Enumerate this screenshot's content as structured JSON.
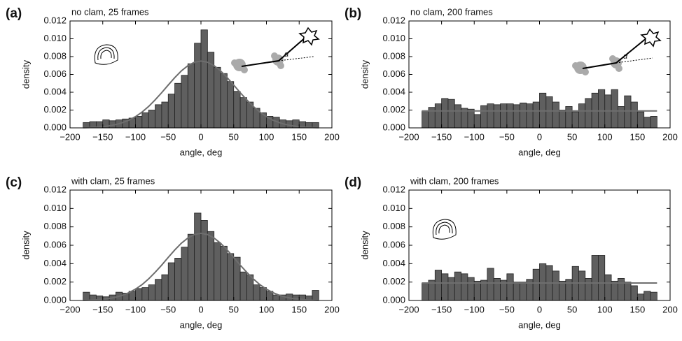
{
  "chart_data": [
    {
      "type": "histogram",
      "panel_label": "(a)",
      "title": "no clam, 25 frames",
      "xlabel": "angle, deg",
      "ylabel": "density",
      "bins": [
        -180,
        -170,
        -160,
        -150,
        -140,
        -130,
        -120,
        -110,
        -100,
        -90,
        -80,
        -70,
        -60,
        -50,
        -40,
        -30,
        -20,
        -10,
        0,
        10,
        20,
        30,
        40,
        50,
        60,
        70,
        80,
        90,
        100,
        110,
        120,
        130,
        140,
        150,
        160,
        170,
        180
      ],
      "values": [
        0.0006,
        0.0007,
        0.0007,
        0.0009,
        0.0008,
        0.0009,
        0.001,
        0.0011,
        0.0013,
        0.0017,
        0.002,
        0.0026,
        0.0029,
        0.0038,
        0.005,
        0.0059,
        0.0072,
        0.0095,
        0.011,
        0.0085,
        0.0068,
        0.0061,
        0.0052,
        0.0041,
        0.0034,
        0.0029,
        0.0022,
        0.0017,
        0.0013,
        0.0012,
        0.0009,
        0.0008,
        0.0009,
        0.0007,
        0.0006,
        0.0006
      ],
      "fit": {
        "x": [
          -180,
          -170,
          -160,
          -150,
          -140,
          -130,
          -120,
          -110,
          -100,
          -90,
          -80,
          -70,
          -60,
          -50,
          -40,
          -30,
          -20,
          -10,
          0,
          10,
          20,
          30,
          40,
          50,
          60,
          70,
          80,
          90,
          100,
          110,
          120,
          130,
          140,
          150,
          160,
          170,
          180
        ],
        "y": [
          2e-05,
          4e-05,
          8e-05,
          0.00014,
          0.00023,
          0.00037,
          0.00058,
          0.00087,
          0.00126,
          0.00177,
          0.0024,
          0.00314,
          0.00395,
          0.00481,
          0.00564,
          0.00639,
          0.00698,
          0.00737,
          0.0075,
          0.00737,
          0.00698,
          0.00639,
          0.00564,
          0.00481,
          0.00395,
          0.00314,
          0.0024,
          0.00177,
          0.00126,
          0.00087,
          0.00058,
          0.00037,
          0.00023,
          0.00014,
          8e-05,
          4e-05,
          2e-05
        ]
      },
      "color": "#5f5f5f",
      "fit_color": "#6e6e6e",
      "xlim": [
        -200,
        200
      ],
      "ylim": [
        0,
        0.012
      ],
      "xticks": [
        {
          "value": -200,
          "label": "−200"
        },
        {
          "value": -150,
          "label": "−150"
        },
        {
          "value": -100,
          "label": "−100"
        },
        {
          "value": -50,
          "label": "−50"
        },
        0,
        50,
        100,
        150,
        200
      ],
      "yticks": [
        {
          "value": 0,
          "label": "0.000"
        },
        0.002,
        0.004,
        0.006,
        0.008,
        {
          "value": 0.01,
          "label": "0.010"
        },
        0.012
      ]
    },
    {
      "type": "histogram",
      "panel_label": "(b)",
      "title": "no clam, 200 frames",
      "xlabel": "angle, deg",
      "ylabel": "density",
      "bins": [
        -180,
        -170,
        -160,
        -150,
        -140,
        -130,
        -120,
        -110,
        -100,
        -90,
        -80,
        -70,
        -60,
        -50,
        -40,
        -30,
        -20,
        -10,
        0,
        10,
        20,
        30,
        40,
        50,
        60,
        70,
        80,
        90,
        100,
        110,
        120,
        130,
        140,
        150,
        160,
        170,
        180
      ],
      "values": [
        0.0019,
        0.0023,
        0.0027,
        0.0033,
        0.0032,
        0.0026,
        0.0022,
        0.0021,
        0.0015,
        0.0025,
        0.0027,
        0.0026,
        0.0027,
        0.0027,
        0.0026,
        0.0028,
        0.0027,
        0.0029,
        0.0039,
        0.0035,
        0.0029,
        0.002,
        0.0024,
        0.0018,
        0.0027,
        0.0033,
        0.0039,
        0.0043,
        0.0037,
        0.0043,
        0.0024,
        0.0036,
        0.0029,
        0.0018,
        0.0012,
        0.0013
      ],
      "fit": {
        "x": [
          -180,
          180
        ],
        "y": [
          0.0019,
          0.0019
        ]
      },
      "color": "#5f5f5f",
      "fit_color": "#6e6e6e",
      "xlim": [
        -200,
        200
      ],
      "ylim": [
        0,
        0.012
      ],
      "xticks": [
        {
          "value": -200,
          "label": "−200"
        },
        {
          "value": -150,
          "label": "−150"
        },
        {
          "value": -100,
          "label": "−100"
        },
        {
          "value": -50,
          "label": "−50"
        },
        0,
        50,
        100,
        150,
        200
      ],
      "yticks": [
        {
          "value": 0,
          "label": "0.000"
        },
        0.002,
        0.004,
        0.006,
        0.008,
        {
          "value": 0.01,
          "label": "0.010"
        },
        0.012
      ]
    },
    {
      "type": "histogram",
      "panel_label": "(c)",
      "title": "with clam, 25 frames",
      "xlabel": "angle, deg",
      "ylabel": "density",
      "bins": [
        -180,
        -170,
        -160,
        -150,
        -140,
        -130,
        -120,
        -110,
        -100,
        -90,
        -80,
        -70,
        -60,
        -50,
        -40,
        -30,
        -20,
        -10,
        0,
        10,
        20,
        30,
        40,
        50,
        60,
        70,
        80,
        90,
        100,
        110,
        120,
        130,
        140,
        150,
        160,
        170,
        180
      ],
      "values": [
        0.0009,
        0.0006,
        0.0005,
        0.0004,
        0.0006,
        0.0009,
        0.0008,
        0.001,
        0.0013,
        0.0014,
        0.0017,
        0.0023,
        0.0028,
        0.0041,
        0.0046,
        0.0058,
        0.0072,
        0.0095,
        0.0087,
        0.0075,
        0.0063,
        0.0059,
        0.0051,
        0.0047,
        0.0031,
        0.0028,
        0.0017,
        0.0014,
        0.001,
        0.0006,
        0.0006,
        0.0007,
        0.0006,
        0.0006,
        0.0005,
        0.0011
      ],
      "fit": {
        "x": [
          -180,
          -170,
          -160,
          -150,
          -140,
          -130,
          -120,
          -110,
          -100,
          -90,
          -80,
          -70,
          -60,
          -50,
          -40,
          -30,
          -20,
          -10,
          0,
          10,
          20,
          30,
          40,
          50,
          60,
          70,
          80,
          90,
          100,
          110,
          120,
          130,
          140,
          150,
          160,
          170,
          180
        ],
        "y": [
          2e-05,
          4e-05,
          8e-05,
          0.00014,
          0.00022,
          0.00036,
          0.00056,
          0.00085,
          0.00123,
          0.00172,
          0.00234,
          0.00306,
          0.00384,
          0.00468,
          0.00549,
          0.00622,
          0.00679,
          0.00717,
          0.0073,
          0.00717,
          0.00679,
          0.00622,
          0.00549,
          0.00468,
          0.00384,
          0.00306,
          0.00234,
          0.00172,
          0.00123,
          0.00085,
          0.00056,
          0.00036,
          0.00022,
          0.00014,
          8e-05,
          4e-05,
          2e-05
        ]
      },
      "color": "#5f5f5f",
      "fit_color": "#6e6e6e",
      "xlim": [
        -200,
        200
      ],
      "ylim": [
        0,
        0.012
      ],
      "xticks": [
        {
          "value": -200,
          "label": "−200"
        },
        {
          "value": -150,
          "label": "−150"
        },
        {
          "value": -100,
          "label": "−100"
        },
        {
          "value": -50,
          "label": "−50"
        },
        0,
        50,
        100,
        150,
        200
      ],
      "yticks": [
        {
          "value": 0,
          "label": "0.000"
        },
        0.002,
        0.004,
        0.006,
        0.008,
        {
          "value": 0.01,
          "label": "0.010"
        },
        0.012
      ]
    },
    {
      "type": "histogram",
      "panel_label": "(d)",
      "title": "with clam, 200 frames",
      "xlabel": "angle, deg",
      "ylabel": "density",
      "bins": [
        -180,
        -170,
        -160,
        -150,
        -140,
        -130,
        -120,
        -110,
        -100,
        -90,
        -80,
        -70,
        -60,
        -50,
        -40,
        -30,
        -20,
        -10,
        0,
        10,
        20,
        30,
        40,
        50,
        60,
        70,
        80,
        90,
        100,
        110,
        120,
        130,
        140,
        150,
        160,
        170,
        180
      ],
      "values": [
        0.0019,
        0.0022,
        0.0033,
        0.0029,
        0.0025,
        0.0031,
        0.0029,
        0.0025,
        0.0021,
        0.0022,
        0.0035,
        0.0024,
        0.0022,
        0.0029,
        0.002,
        0.002,
        0.0023,
        0.0034,
        0.004,
        0.0038,
        0.0032,
        0.0021,
        0.0023,
        0.0037,
        0.0032,
        0.0024,
        0.0049,
        0.0049,
        0.0028,
        0.0021,
        0.0024,
        0.002,
        0.0016,
        0.0007,
        0.001,
        0.0009
      ],
      "fit": {
        "x": [
          -180,
          180
        ],
        "y": [
          0.0019,
          0.0019
        ]
      },
      "color": "#5f5f5f",
      "fit_color": "#6e6e6e",
      "xlim": [
        -200,
        200
      ],
      "ylim": [
        0,
        0.012
      ],
      "xticks": [
        {
          "value": -200,
          "label": "−200"
        },
        {
          "value": -150,
          "label": "−150"
        },
        {
          "value": -100,
          "label": "−100"
        },
        {
          "value": -50,
          "label": "−50"
        },
        0,
        50,
        100,
        150,
        200
      ],
      "yticks": [
        {
          "value": 0,
          "label": "0.000"
        },
        0.002,
        0.004,
        0.006,
        0.008,
        {
          "value": 0.01,
          "label": "0.010"
        },
        0.012
      ]
    }
  ]
}
